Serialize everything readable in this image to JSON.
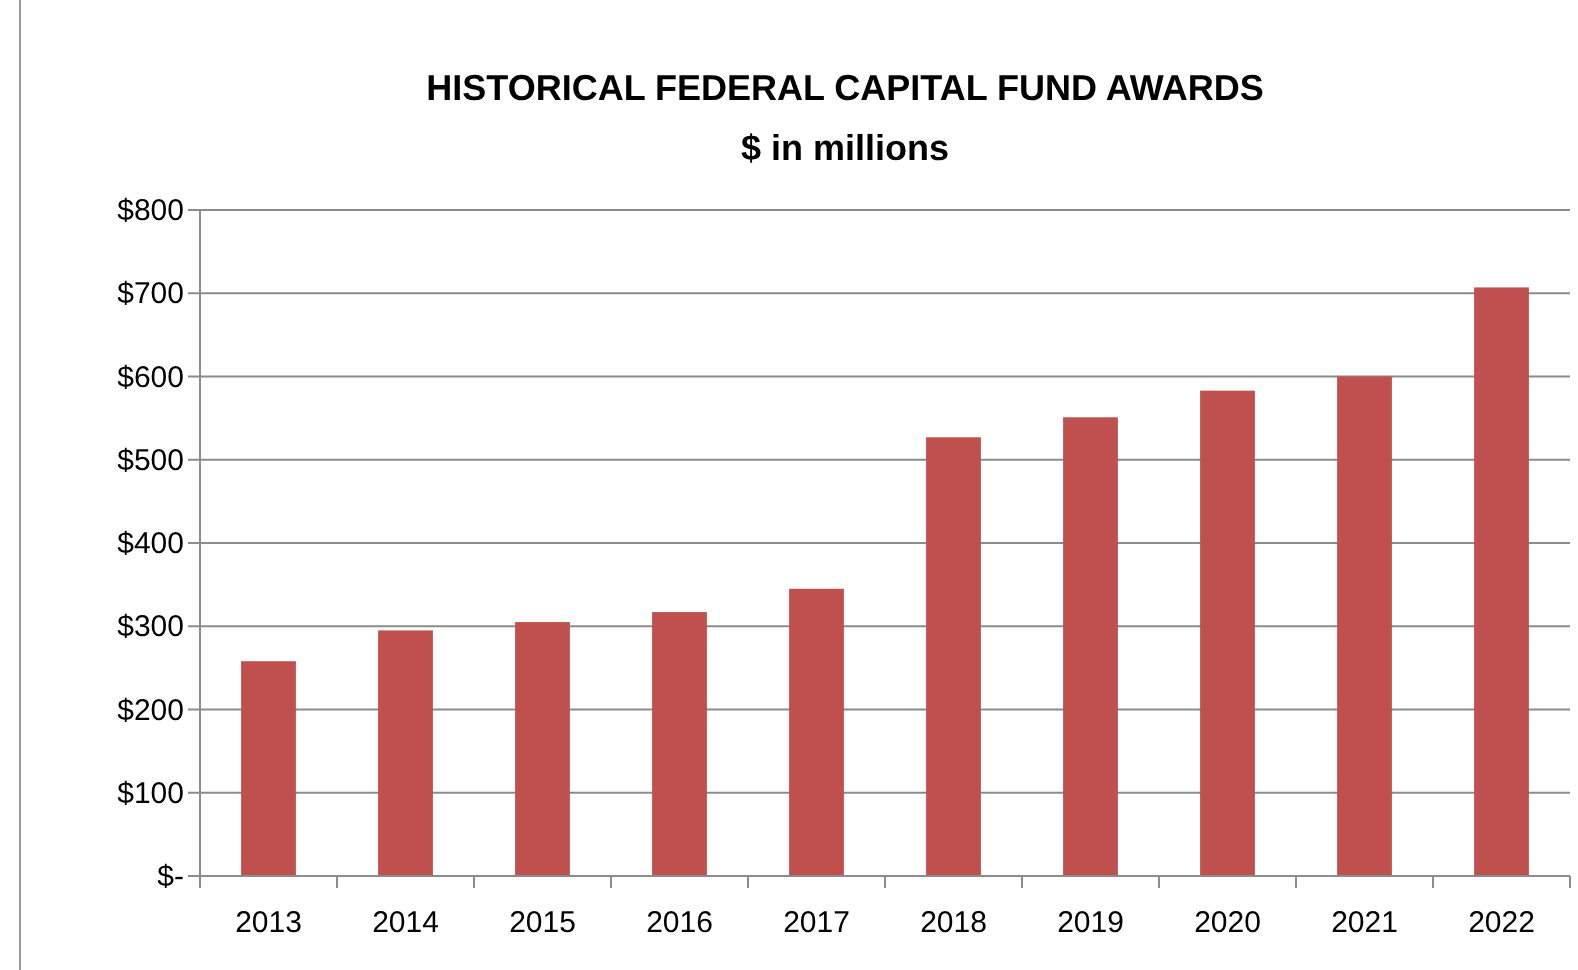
{
  "chart_data": {
    "type": "bar",
    "title": "HISTORICAL FEDERAL CAPITAL FUND AWARDS",
    "subtitle": "$ in millions",
    "categories": [
      "2013",
      "2014",
      "2015",
      "2016",
      "2017",
      "2018",
      "2019",
      "2020",
      "2021",
      "2022"
    ],
    "values": [
      258,
      295,
      305,
      317,
      345,
      527,
      551,
      583,
      600,
      707
    ],
    "color": "#c0504d",
    "ylim": [
      0,
      800
    ],
    "yticks": [
      {
        "value": 0,
        "label": "$-"
      },
      {
        "value": 100,
        "label": "$100"
      },
      {
        "value": 200,
        "label": "$200"
      },
      {
        "value": 300,
        "label": "$300"
      },
      {
        "value": 400,
        "label": "$400"
      },
      {
        "value": 500,
        "label": "$500"
      },
      {
        "value": 600,
        "label": "$600"
      },
      {
        "value": 700,
        "label": "$700"
      },
      {
        "value": 800,
        "label": "$800"
      }
    ],
    "grid": "y"
  }
}
